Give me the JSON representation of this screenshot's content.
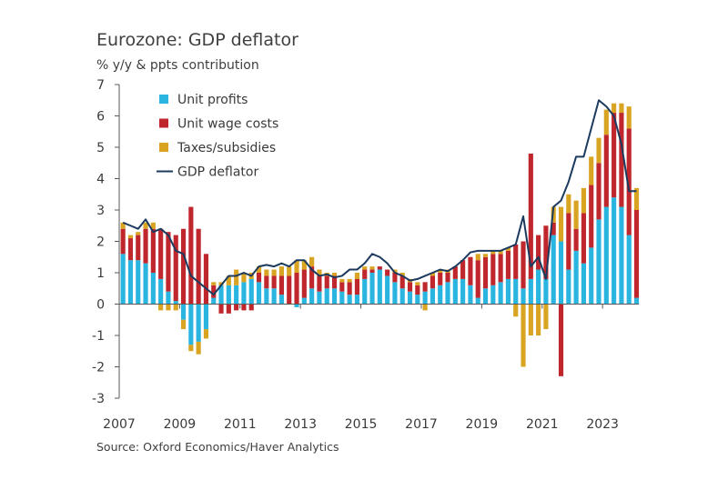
{
  "chart_data": {
    "type": "bar",
    "title": "Eurozone: GDP deflator",
    "ylabel": "% y/y & ppts contribution",
    "source": "Source: Oxford Economics/Haver Analytics",
    "ylim": [
      -3,
      7
    ],
    "yticks": [
      -3,
      -2,
      -1,
      0,
      1,
      2,
      3,
      4,
      5,
      6,
      7
    ],
    "xlim": [
      2007,
      2024.2
    ],
    "xticks": [
      2007,
      2009,
      2011,
      2013,
      2015,
      2017,
      2019,
      2021,
      2023
    ],
    "legend_position": "top-left",
    "grid": false,
    "colors": {
      "unit_profits": "#29b5e0",
      "unit_wage_costs": "#c0272d",
      "taxes_subsidies": "#d9a422",
      "gdp_deflator": "#1b3a5e"
    },
    "x": [
      2007.0,
      2007.25,
      2007.5,
      2007.75,
      2008.0,
      2008.25,
      2008.5,
      2008.75,
      2009.0,
      2009.25,
      2009.5,
      2009.75,
      2010.0,
      2010.25,
      2010.5,
      2010.75,
      2011.0,
      2011.25,
      2011.5,
      2011.75,
      2012.0,
      2012.25,
      2012.5,
      2012.75,
      2013.0,
      2013.25,
      2013.5,
      2013.75,
      2014.0,
      2014.25,
      2014.5,
      2014.75,
      2015.0,
      2015.25,
      2015.5,
      2015.75,
      2016.0,
      2016.25,
      2016.5,
      2016.75,
      2017.0,
      2017.25,
      2017.5,
      2017.75,
      2018.0,
      2018.25,
      2018.5,
      2018.75,
      2019.0,
      2019.25,
      2019.5,
      2019.75,
      2020.0,
      2020.25,
      2020.5,
      2020.75,
      2021.0,
      2021.25,
      2021.5,
      2021.75,
      2022.0,
      2022.25,
      2022.5,
      2022.75,
      2023.0,
      2023.25,
      2023.5,
      2023.75,
      2024.0
    ],
    "series": [
      {
        "name": "Unit profits",
        "values": [
          1.6,
          1.4,
          1.4,
          1.3,
          1.0,
          0.8,
          0.4,
          0.1,
          -0.5,
          -1.3,
          -1.2,
          -0.8,
          0.2,
          0.6,
          0.6,
          0.6,
          0.7,
          0.8,
          0.7,
          0.5,
          0.5,
          0.3,
          0.0,
          -0.1,
          0.2,
          0.5,
          0.4,
          0.5,
          0.5,
          0.4,
          0.3,
          0.3,
          0.8,
          1.0,
          1.1,
          0.9,
          0.7,
          0.5,
          0.4,
          0.3,
          0.4,
          0.5,
          0.6,
          0.7,
          0.8,
          0.8,
          0.6,
          0.2,
          0.5,
          0.6,
          0.7,
          0.8,
          0.8,
          0.5,
          0.8,
          1.1,
          0.8,
          2.2,
          2.0,
          1.1,
          1.7,
          1.3,
          1.8,
          2.7,
          3.1,
          3.4,
          3.1,
          2.2,
          0.2
        ]
      },
      {
        "name": "Unit wage costs",
        "values": [
          0.8,
          0.7,
          0.8,
          1.1,
          1.4,
          1.6,
          1.9,
          2.1,
          2.4,
          3.1,
          2.4,
          1.6,
          0.4,
          -0.3,
          -0.3,
          -0.2,
          -0.2,
          -0.2,
          0.3,
          0.4,
          0.4,
          0.6,
          0.9,
          1.0,
          0.9,
          0.7,
          0.5,
          0.4,
          0.4,
          0.3,
          0.4,
          0.5,
          0.3,
          0.1,
          0.1,
          0.2,
          0.3,
          0.4,
          0.3,
          0.3,
          0.3,
          0.4,
          0.4,
          0.3,
          0.4,
          0.6,
          0.9,
          1.2,
          1.0,
          1.0,
          0.9,
          0.9,
          1.1,
          1.5,
          4.0,
          1.1,
          1.7,
          0.4,
          -2.3,
          1.8,
          0.7,
          1.6,
          2.0,
          1.8,
          2.3,
          2.7,
          3.0,
          3.4,
          2.8
        ]
      },
      {
        "name": "Taxes/subsidies",
        "values": [
          0.2,
          0.1,
          0.1,
          0.2,
          0.2,
          -0.2,
          -0.2,
          -0.2,
          -0.3,
          -0.2,
          -0.4,
          -0.3,
          0.1,
          0.1,
          0.3,
          0.5,
          0.3,
          0.2,
          0.2,
          0.2,
          0.2,
          0.3,
          0.3,
          0.4,
          0.3,
          0.3,
          0.2,
          0.1,
          0.1,
          0.1,
          0.1,
          0.2,
          0.1,
          0.1,
          0.0,
          0.0,
          0.1,
          0.1,
          0.1,
          0.1,
          -0.2,
          0.1,
          0.1,
          0.1,
          0.0,
          0.0,
          0.0,
          0.2,
          0.1,
          0.1,
          0.1,
          0.1,
          -0.4,
          -2.0,
          -1.0,
          -1.0,
          -0.8,
          0.5,
          1.1,
          0.6,
          0.9,
          0.8,
          0.9,
          0.8,
          0.8,
          0.3,
          0.3,
          0.7,
          0.7
        ]
      },
      {
        "name": "GDP deflator",
        "values": [
          2.6,
          2.5,
          2.4,
          2.7,
          2.3,
          2.4,
          2.2,
          1.7,
          1.6,
          0.9,
          0.7,
          0.5,
          0.3,
          0.6,
          0.9,
          0.9,
          1.0,
          0.9,
          1.2,
          1.25,
          1.2,
          1.3,
          1.2,
          1.4,
          1.4,
          1.1,
          0.9,
          0.95,
          0.85,
          0.9,
          1.1,
          1.1,
          1.3,
          1.6,
          1.5,
          1.3,
          1.0,
          0.9,
          0.75,
          0.8,
          0.9,
          1.0,
          1.1,
          1.05,
          1.2,
          1.4,
          1.65,
          1.7,
          1.7,
          1.7,
          1.7,
          1.8,
          1.9,
          2.8,
          1.2,
          1.5,
          0.8,
          3.1,
          3.3,
          3.9,
          4.7,
          4.7,
          5.6,
          6.5,
          6.3,
          6.0,
          5.1,
          3.6,
          3.6
        ]
      }
    ]
  }
}
